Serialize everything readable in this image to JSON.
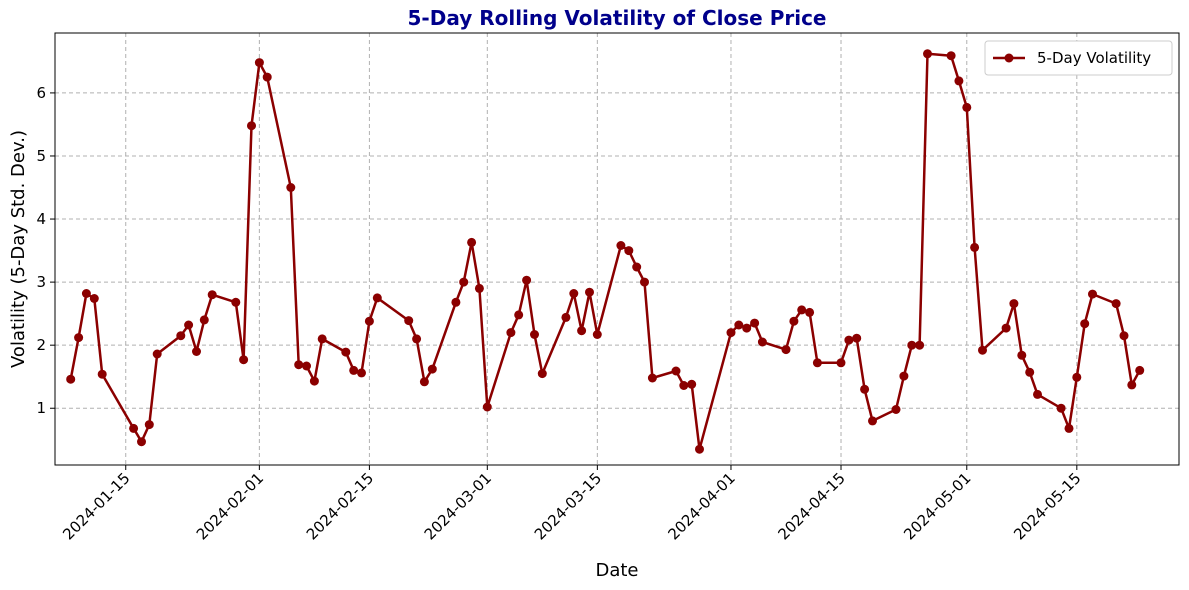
{
  "chart_data": {
    "type": "line",
    "title": "5-Day Rolling Volatility of Close Price",
    "xlabel": "Date",
    "ylabel": "Volatility (5-Day Std. Dev.)",
    "x_tick_labels": [
      "2024-01-15",
      "2024-02-01",
      "2024-02-15",
      "2024-03-01",
      "2024-03-15",
      "2024-04-01",
      "2024-04-15",
      "2024-05-01",
      "2024-05-15"
    ],
    "y_ticks": [
      1,
      2,
      3,
      4,
      5,
      6
    ],
    "xlim": [
      "2024-01-06",
      "2024-05-28"
    ],
    "ylim": [
      0.1,
      6.95
    ],
    "grid": true,
    "legend_position": "top-right",
    "colors": {
      "line": "#8b0000",
      "title": "#00008b",
      "grid": "#b0b0b0"
    },
    "series": [
      {
        "name": "5-Day Volatility",
        "x": [
          "2024-01-08",
          "2024-01-09",
          "2024-01-10",
          "2024-01-11",
          "2024-01-12",
          "2024-01-16",
          "2024-01-17",
          "2024-01-18",
          "2024-01-19",
          "2024-01-22",
          "2024-01-23",
          "2024-01-24",
          "2024-01-25",
          "2024-01-26",
          "2024-01-29",
          "2024-01-30",
          "2024-01-31",
          "2024-02-01",
          "2024-02-02",
          "2024-02-05",
          "2024-02-06",
          "2024-02-07",
          "2024-02-08",
          "2024-02-09",
          "2024-02-12",
          "2024-02-13",
          "2024-02-14",
          "2024-02-15",
          "2024-02-16",
          "2024-02-20",
          "2024-02-21",
          "2024-02-22",
          "2024-02-23",
          "2024-02-26",
          "2024-02-27",
          "2024-02-28",
          "2024-02-29",
          "2024-03-01",
          "2024-03-04",
          "2024-03-05",
          "2024-03-06",
          "2024-03-07",
          "2024-03-08",
          "2024-03-11",
          "2024-03-12",
          "2024-03-13",
          "2024-03-14",
          "2024-03-15",
          "2024-03-18",
          "2024-03-19",
          "2024-03-20",
          "2024-03-21",
          "2024-03-22",
          "2024-03-25",
          "2024-03-26",
          "2024-03-27",
          "2024-03-28",
          "2024-04-01",
          "2024-04-02",
          "2024-04-03",
          "2024-04-04",
          "2024-04-05",
          "2024-04-08",
          "2024-04-09",
          "2024-04-10",
          "2024-04-11",
          "2024-04-12",
          "2024-04-15",
          "2024-04-16",
          "2024-04-17",
          "2024-04-18",
          "2024-04-19",
          "2024-04-22",
          "2024-04-23",
          "2024-04-24",
          "2024-04-25",
          "2024-04-26",
          "2024-04-29",
          "2024-04-30",
          "2024-05-01",
          "2024-05-02",
          "2024-05-03",
          "2024-05-06",
          "2024-05-07",
          "2024-05-08",
          "2024-05-09",
          "2024-05-10",
          "2024-05-13",
          "2024-05-14",
          "2024-05-15",
          "2024-05-16",
          "2024-05-17",
          "2024-05-20",
          "2024-05-21",
          "2024-05-22",
          "2024-05-23"
        ],
        "y": [
          1.46,
          2.12,
          2.82,
          2.74,
          1.54,
          0.68,
          0.47,
          0.74,
          1.86,
          2.15,
          2.32,
          1.9,
          2.4,
          2.8,
          2.68,
          1.77,
          5.48,
          6.48,
          6.25,
          4.5,
          1.69,
          1.67,
          1.43,
          2.1,
          1.89,
          1.6,
          1.56,
          2.38,
          2.75,
          2.39,
          2.1,
          1.42,
          1.62,
          2.68,
          3.0,
          3.63,
          2.9,
          1.02,
          2.2,
          2.48,
          3.03,
          2.17,
          1.55,
          2.44,
          2.82,
          2.23,
          2.84,
          2.17,
          3.58,
          3.5,
          3.24,
          3.0,
          1.48,
          1.59,
          1.36,
          1.38,
          0.35,
          2.2,
          2.32,
          2.27,
          2.35,
          2.05,
          1.93,
          2.38,
          2.56,
          2.52,
          1.72,
          1.72,
          2.08,
          2.11,
          1.3,
          0.8,
          0.98,
          1.51,
          2.0,
          2.0,
          6.62,
          6.59,
          6.19,
          5.77,
          3.55,
          1.92,
          2.27,
          2.66,
          1.84,
          1.57,
          1.22,
          1.0,
          0.68,
          1.49,
          2.34,
          2.81,
          2.66,
          2.15,
          1.37,
          1.6
        ]
      }
    ]
  }
}
